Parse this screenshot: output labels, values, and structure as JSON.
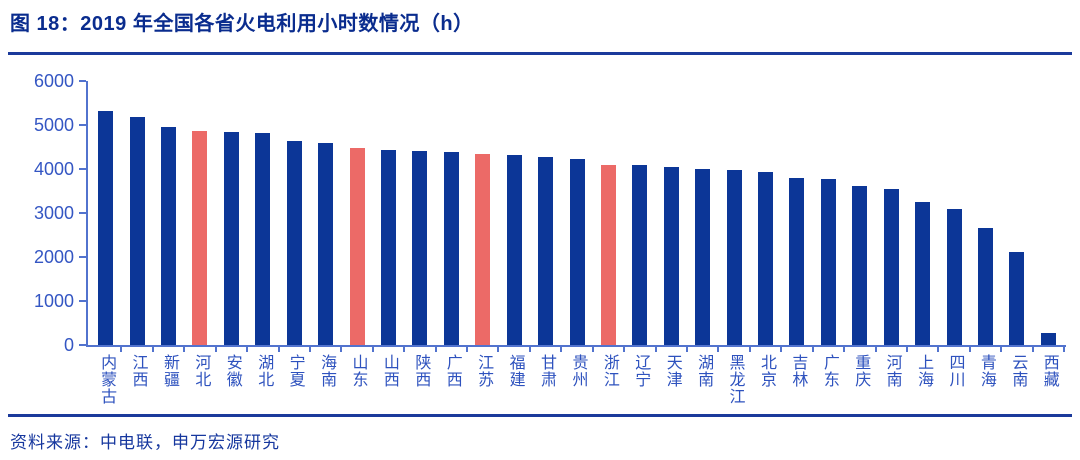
{
  "header": {
    "title": "图 18：2019 年全国各省火电利用小时数情况（h）"
  },
  "footer": {
    "source_label": "资料来源：中电联，申万宏源研究"
  },
  "colors": {
    "title_navy": "#0A2C8E",
    "rule_navy": "#1B3A9B",
    "bar_blue": "#0C3697",
    "bar_highlight_red": "#EC6A67",
    "axis_line_blue": "#5273CE",
    "tick_label_blue": "#3456C3",
    "x_label_blue": "#2E52BE",
    "source_text_blue": "#16379E"
  },
  "chart_data": {
    "type": "bar",
    "title": "2019 年全国各省火电利用小时数情况（h）",
    "xlabel": "",
    "ylabel": "",
    "ylim": [
      0,
      6000
    ],
    "yticks": [
      0,
      1000,
      2000,
      3000,
      4000,
      5000,
      6000
    ],
    "grid": false,
    "legend": null,
    "categories": [
      "内蒙古",
      "江西",
      "新疆",
      "河北",
      "安徽",
      "湖北",
      "宁夏",
      "海南",
      "山东",
      "山西",
      "陕西",
      "广西",
      "江苏",
      "福建",
      "甘肃",
      "贵州",
      "浙江",
      "辽宁",
      "天津",
      "湖南",
      "黑龙江",
      "北京",
      "吉林",
      "广东",
      "重庆",
      "河南",
      "上海",
      "四川",
      "青海",
      "云南",
      "西藏"
    ],
    "values": [
      5310,
      5180,
      4950,
      4870,
      4850,
      4810,
      4630,
      4580,
      4470,
      4440,
      4410,
      4380,
      4350,
      4320,
      4270,
      4230,
      4090,
      4080,
      4040,
      4010,
      3980,
      3940,
      3800,
      3780,
      3620,
      3540,
      3250,
      3080,
      2660,
      2110,
      270
    ],
    "highlight_indices": [
      3,
      8,
      12,
      16
    ],
    "highlight_meaning": "coastal/key provinces highlighted in red"
  }
}
